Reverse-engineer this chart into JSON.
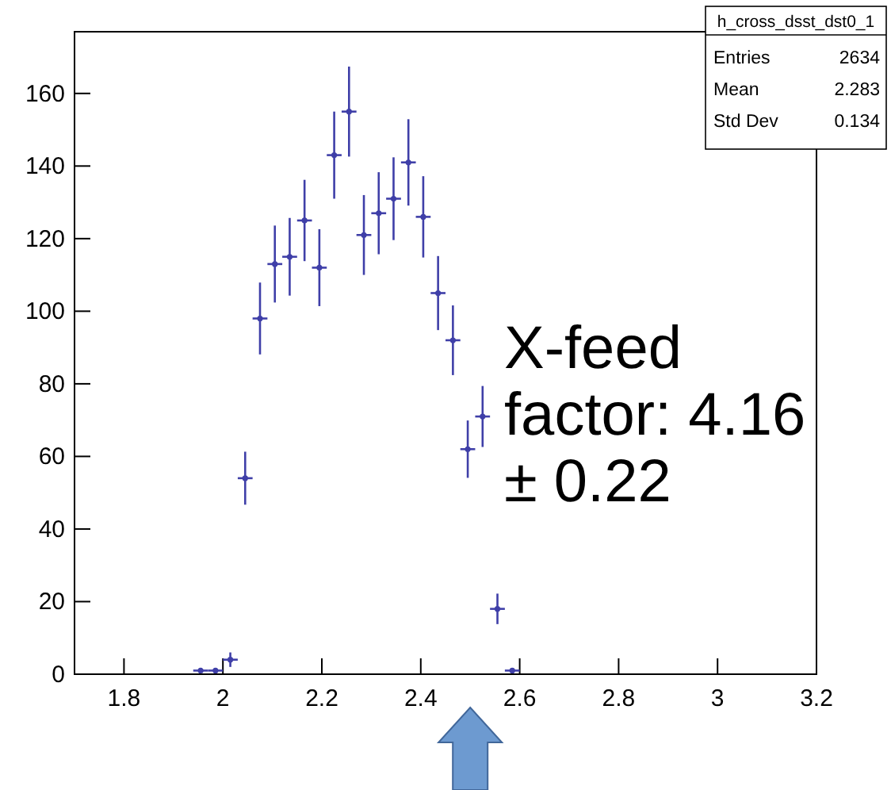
{
  "chart_data": {
    "type": "scatter",
    "title": "h_cross_dsst_dst0_1",
    "x": [
      1.955,
      1.985,
      2.015,
      2.045,
      2.075,
      2.105,
      2.135,
      2.165,
      2.195,
      2.225,
      2.255,
      2.285,
      2.315,
      2.345,
      2.375,
      2.405,
      2.435,
      2.465,
      2.495,
      2.525,
      2.555,
      2.585
    ],
    "values": [
      1,
      1,
      4,
      54,
      98,
      113,
      115,
      125,
      112,
      143,
      155,
      121,
      127,
      131,
      141,
      126,
      105,
      92,
      62,
      71,
      18,
      1
    ],
    "errors": [
      null,
      null,
      2,
      7.3,
      9.9,
      10.6,
      10.7,
      11.2,
      10.6,
      12,
      12.4,
      11,
      11.3,
      11.4,
      11.9,
      11.2,
      10.2,
      9.6,
      7.9,
      8.4,
      4.2,
      null
    ],
    "xerrors": [
      0.015,
      0.015,
      0.015,
      0.015,
      0.015,
      0.015,
      0.015,
      0.015,
      0.015,
      0.015,
      0.015,
      0.015,
      0.015,
      0.015,
      0.015,
      0.015,
      0.015,
      0.015,
      0.015,
      0.015,
      0.015,
      0.015
    ],
    "color": "#3f3fa8",
    "xlim": [
      1.7,
      3.2
    ],
    "xticks": [
      1.8,
      2,
      2.2,
      2.4,
      2.6,
      2.8,
      3,
      3.2
    ],
    "ylim": [
      0,
      177
    ],
    "yticks": [
      0,
      20,
      40,
      60,
      80,
      100,
      120,
      140,
      160
    ],
    "annotations": [
      "Entries 2634",
      "Mean 2.283",
      "Std Dev 0.134",
      "X-feed factor: 4.16 ± 0.22"
    ]
  }
}
